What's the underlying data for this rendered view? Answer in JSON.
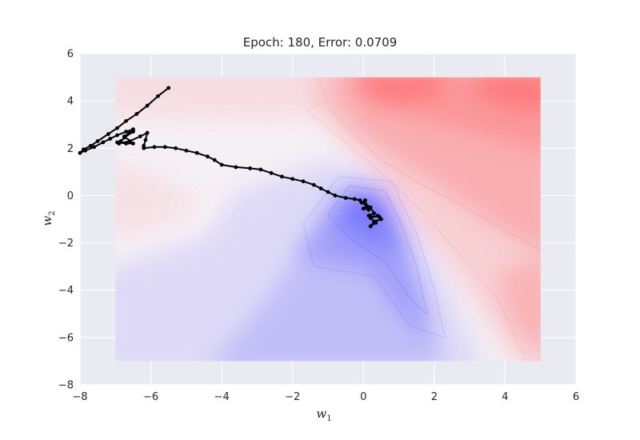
{
  "chart_data": {
    "type": "contour-with-trajectory",
    "title": "Epoch:  180, Error: 0.0709",
    "xlabel": {
      "base": "w",
      "sub": "1"
    },
    "ylabel": {
      "base": "w",
      "sub": "2"
    },
    "xlim": [
      -8,
      6
    ],
    "ylim": [
      -8,
      6
    ],
    "xticks": [
      -8,
      -6,
      -4,
      -2,
      0,
      2,
      4,
      6
    ],
    "yticks": [
      -8,
      -6,
      -4,
      -2,
      0,
      2,
      4,
      6
    ],
    "xtick_labels": [
      "−8",
      "−6",
      "−4",
      "−2",
      "0",
      "2",
      "4",
      "6"
    ],
    "ytick_labels": [
      "−8",
      "−6",
      "−4",
      "−2",
      "0",
      "2",
      "4",
      "6"
    ],
    "grid": true,
    "contour_region": {
      "x": [
        -7,
        5
      ],
      "y": [
        -7,
        5
      ]
    },
    "colors": {
      "background": "#eaeaf2",
      "high": "#ff5a5a",
      "low": "#5a5aff",
      "mid": "#f5f0f5",
      "trajectory": "#000000"
    },
    "trajectory": [
      [
        -5.5,
        4.55
      ],
      [
        -5.8,
        4.2
      ],
      [
        -6.1,
        3.8
      ],
      [
        -6.4,
        3.45
      ],
      [
        -6.7,
        3.15
      ],
      [
        -6.95,
        2.85
      ],
      [
        -7.2,
        2.6
      ],
      [
        -7.5,
        2.3
      ],
      [
        -7.7,
        2.1
      ],
      [
        -7.9,
        1.95
      ],
      [
        -8.0,
        1.8
      ],
      [
        -7.85,
        1.9
      ],
      [
        -7.6,
        2.05
      ],
      [
        -7.35,
        2.25
      ],
      [
        -7.15,
        2.4
      ],
      [
        -6.95,
        2.55
      ],
      [
        -6.7,
        2.7
      ],
      [
        -6.5,
        2.8
      ],
      [
        -6.5,
        2.75
      ],
      [
        -6.85,
        2.3
      ],
      [
        -6.95,
        2.25
      ],
      [
        -6.7,
        2.2
      ],
      [
        -6.5,
        2.2
      ],
      [
        -6.75,
        2.5
      ],
      [
        -6.6,
        2.65
      ],
      [
        -6.5,
        2.7
      ],
      [
        -6.75,
        2.45
      ],
      [
        -6.9,
        2.2
      ],
      [
        -6.6,
        2.3
      ],
      [
        -6.3,
        2.5
      ],
      [
        -6.1,
        2.65
      ],
      [
        -6.15,
        2.35
      ],
      [
        -6.2,
        2.1
      ],
      [
        -6.2,
        2.0
      ],
      [
        -5.9,
        2.05
      ],
      [
        -5.6,
        2.05
      ],
      [
        -5.3,
        2.0
      ],
      [
        -5.0,
        1.9
      ],
      [
        -4.7,
        1.8
      ],
      [
        -4.4,
        1.65
      ],
      [
        -4.2,
        1.5
      ],
      [
        -4.0,
        1.3
      ],
      [
        -3.6,
        1.2
      ],
      [
        -3.2,
        1.15
      ],
      [
        -2.9,
        1.1
      ],
      [
        -2.6,
        0.95
      ],
      [
        -2.3,
        0.8
      ],
      [
        -2.0,
        0.7
      ],
      [
        -1.7,
        0.6
      ],
      [
        -1.4,
        0.45
      ],
      [
        -1.2,
        0.3
      ],
      [
        -1.0,
        0.15
      ],
      [
        -0.8,
        0.0
      ],
      [
        -0.5,
        -0.1
      ],
      [
        -0.25,
        -0.15
      ],
      [
        -0.1,
        -0.2
      ],
      [
        -0.05,
        -0.3
      ],
      [
        0.05,
        -0.2
      ],
      [
        0.1,
        -0.45
      ],
      [
        0.0,
        -0.55
      ],
      [
        0.15,
        -0.6
      ],
      [
        0.05,
        -0.35
      ],
      [
        0.2,
        -0.5
      ],
      [
        0.3,
        -0.75
      ],
      [
        0.15,
        -0.85
      ],
      [
        0.45,
        -0.9
      ],
      [
        0.5,
        -1.0
      ],
      [
        0.3,
        -1.1
      ],
      [
        0.2,
        -1.3
      ],
      [
        0.35,
        -1.15
      ],
      [
        0.2,
        -0.95
      ],
      [
        0.4,
        -0.85
      ]
    ]
  }
}
